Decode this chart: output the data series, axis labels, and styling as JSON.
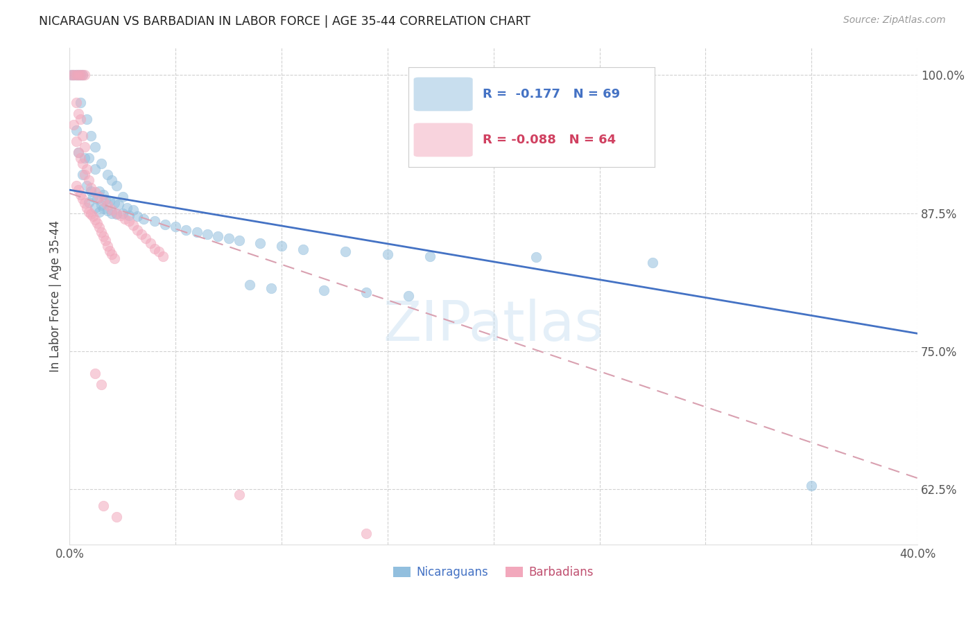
{
  "title": "NICARAGUAN VS BARBADIAN IN LABOR FORCE | AGE 35-44 CORRELATION CHART",
  "source": "Source: ZipAtlas.com",
  "ylabel": "In Labor Force | Age 35-44",
  "xlim": [
    0.0,
    0.4
  ],
  "ylim": [
    0.575,
    1.025
  ],
  "yticks": [
    0.625,
    0.75,
    0.875,
    1.0
  ],
  "ytick_labels": [
    "62.5%",
    "75.0%",
    "87.5%",
    "100.0%"
  ],
  "xticks": [
    0.0,
    0.05,
    0.1,
    0.15,
    0.2,
    0.25,
    0.3,
    0.35,
    0.4
  ],
  "xtick_labels_show": [
    "0.0%",
    "40.0%"
  ],
  "watermark": "ZIPatlas",
  "legend_r_blue": "-0.177",
  "legend_n_blue": "69",
  "legend_r_pink": "-0.088",
  "legend_n_pink": "64",
  "blue_color": "#92bfde",
  "pink_color": "#f2a8bc",
  "trendline_blue": "#4472c4",
  "trendline_pink": "#d9a0b0",
  "blue_trend_x": [
    0.0,
    0.4
  ],
  "blue_trend_y": [
    0.896,
    0.766
  ],
  "pink_trend_x": [
    0.0,
    0.4
  ],
  "pink_trend_y": [
    0.893,
    0.635
  ],
  "blue_points": [
    [
      0.001,
      1.0
    ],
    [
      0.002,
      1.0
    ],
    [
      0.003,
      1.0
    ],
    [
      0.004,
      1.0
    ],
    [
      0.005,
      1.0
    ],
    [
      0.006,
      1.0
    ],
    [
      0.005,
      0.975
    ],
    [
      0.008,
      0.96
    ],
    [
      0.003,
      0.95
    ],
    [
      0.01,
      0.945
    ],
    [
      0.012,
      0.935
    ],
    [
      0.004,
      0.93
    ],
    [
      0.007,
      0.925
    ],
    [
      0.009,
      0.925
    ],
    [
      0.015,
      0.92
    ],
    [
      0.012,
      0.915
    ],
    [
      0.018,
      0.91
    ],
    [
      0.006,
      0.91
    ],
    [
      0.02,
      0.905
    ],
    [
      0.008,
      0.9
    ],
    [
      0.022,
      0.9
    ],
    [
      0.014,
      0.895
    ],
    [
      0.01,
      0.895
    ],
    [
      0.016,
      0.892
    ],
    [
      0.025,
      0.89
    ],
    [
      0.011,
      0.89
    ],
    [
      0.013,
      0.888
    ],
    [
      0.017,
      0.887
    ],
    [
      0.019,
      0.886
    ],
    [
      0.009,
      0.885
    ],
    [
      0.021,
      0.884
    ],
    [
      0.023,
      0.883
    ],
    [
      0.015,
      0.882
    ],
    [
      0.027,
      0.88
    ],
    [
      0.012,
      0.88
    ],
    [
      0.016,
      0.879
    ],
    [
      0.03,
      0.878
    ],
    [
      0.018,
      0.877
    ],
    [
      0.014,
      0.876
    ],
    [
      0.02,
      0.875
    ],
    [
      0.025,
      0.875
    ],
    [
      0.022,
      0.874
    ],
    [
      0.028,
      0.873
    ],
    [
      0.032,
      0.872
    ],
    [
      0.035,
      0.87
    ],
    [
      0.04,
      0.868
    ],
    [
      0.045,
      0.865
    ],
    [
      0.05,
      0.863
    ],
    [
      0.055,
      0.86
    ],
    [
      0.06,
      0.858
    ],
    [
      0.065,
      0.856
    ],
    [
      0.07,
      0.854
    ],
    [
      0.075,
      0.852
    ],
    [
      0.08,
      0.85
    ],
    [
      0.09,
      0.848
    ],
    [
      0.1,
      0.845
    ],
    [
      0.11,
      0.842
    ],
    [
      0.13,
      0.84
    ],
    [
      0.15,
      0.838
    ],
    [
      0.17,
      0.836
    ],
    [
      0.22,
      0.835
    ],
    [
      0.275,
      0.83
    ],
    [
      0.35,
      0.628
    ],
    [
      0.085,
      0.81
    ],
    [
      0.095,
      0.807
    ],
    [
      0.12,
      0.805
    ],
    [
      0.14,
      0.803
    ],
    [
      0.16,
      0.8
    ]
  ],
  "pink_points": [
    [
      0.001,
      1.0
    ],
    [
      0.002,
      1.0
    ],
    [
      0.003,
      1.0
    ],
    [
      0.004,
      1.0
    ],
    [
      0.005,
      1.0
    ],
    [
      0.006,
      1.0
    ],
    [
      0.007,
      1.0
    ],
    [
      0.003,
      0.975
    ],
    [
      0.004,
      0.965
    ],
    [
      0.005,
      0.96
    ],
    [
      0.002,
      0.955
    ],
    [
      0.006,
      0.945
    ],
    [
      0.003,
      0.94
    ],
    [
      0.007,
      0.935
    ],
    [
      0.004,
      0.93
    ],
    [
      0.005,
      0.925
    ],
    [
      0.006,
      0.92
    ],
    [
      0.008,
      0.915
    ],
    [
      0.007,
      0.91
    ],
    [
      0.009,
      0.905
    ],
    [
      0.003,
      0.9
    ],
    [
      0.01,
      0.898
    ],
    [
      0.004,
      0.896
    ],
    [
      0.012,
      0.894
    ],
    [
      0.005,
      0.892
    ],
    [
      0.014,
      0.89
    ],
    [
      0.006,
      0.888
    ],
    [
      0.016,
      0.886
    ],
    [
      0.007,
      0.884
    ],
    [
      0.018,
      0.882
    ],
    [
      0.008,
      0.88
    ],
    [
      0.02,
      0.878
    ],
    [
      0.009,
      0.876
    ],
    [
      0.022,
      0.875
    ],
    [
      0.01,
      0.874
    ],
    [
      0.024,
      0.873
    ],
    [
      0.011,
      0.872
    ],
    [
      0.026,
      0.87
    ],
    [
      0.012,
      0.869
    ],
    [
      0.028,
      0.868
    ],
    [
      0.013,
      0.866
    ],
    [
      0.03,
      0.864
    ],
    [
      0.014,
      0.862
    ],
    [
      0.032,
      0.86
    ],
    [
      0.015,
      0.858
    ],
    [
      0.034,
      0.856
    ],
    [
      0.016,
      0.854
    ],
    [
      0.036,
      0.852
    ],
    [
      0.017,
      0.85
    ],
    [
      0.038,
      0.848
    ],
    [
      0.018,
      0.845
    ],
    [
      0.04,
      0.843
    ],
    [
      0.019,
      0.841
    ],
    [
      0.042,
      0.84
    ],
    [
      0.02,
      0.838
    ],
    [
      0.044,
      0.836
    ],
    [
      0.021,
      0.834
    ],
    [
      0.012,
      0.73
    ],
    [
      0.015,
      0.72
    ],
    [
      0.08,
      0.62
    ],
    [
      0.14,
      0.585
    ],
    [
      0.016,
      0.61
    ],
    [
      0.022,
      0.6
    ]
  ],
  "background_color": "#ffffff",
  "grid_color": "#cccccc"
}
